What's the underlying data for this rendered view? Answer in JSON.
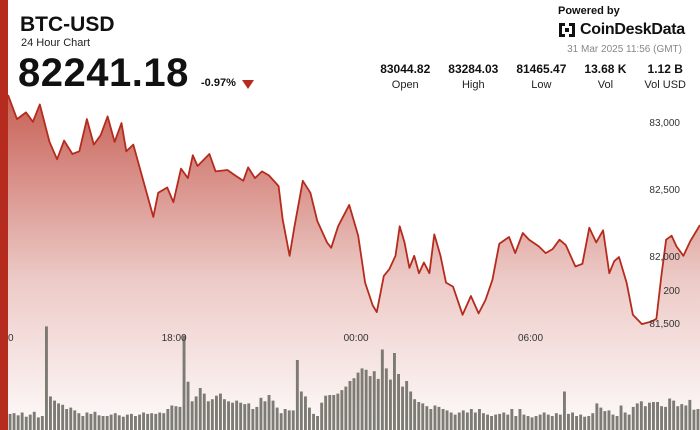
{
  "header": {
    "ticker": "BTC-USD",
    "subtitle": "24 Hour Chart",
    "price": "82241.18",
    "change": "-0.97%"
  },
  "branding": {
    "powered_by": "Powered by",
    "name": "CoinDeskData",
    "logo_icon": "coindesk-logo-icon"
  },
  "timestamp": "31 Mar 2025 11:56 (GMT)",
  "stats": [
    {
      "value": "83044.82",
      "label": "Open"
    },
    {
      "value": "83284.03",
      "label": "High"
    },
    {
      "value": "81465.47",
      "label": "Low"
    },
    {
      "value": "13.68 K",
      "label": "Vol"
    },
    {
      "value": "1.12 B",
      "label": "Vol USD"
    }
  ],
  "colors": {
    "accent": "#b52b1d",
    "line": "#b52b1d",
    "bars": "#6b6b62"
  },
  "chart_data": {
    "type": "line",
    "title": "",
    "xlabel": "",
    "ylabel": "",
    "ylim": [
      80700,
      83200
    ],
    "yticks": [
      {
        "value": 81500,
        "label": "81,500"
      },
      {
        "value": 82000,
        "label": "82,000"
      },
      {
        "value": 82500,
        "label": "82,500"
      },
      {
        "value": 83000,
        "label": "83,000"
      }
    ],
    "xticks": [
      {
        "x": 0,
        "label": "0"
      },
      {
        "x": 0.24,
        "label": "18:00"
      },
      {
        "x": 0.503,
        "label": "00:00"
      },
      {
        "x": 0.755,
        "label": "06:00"
      }
    ],
    "price_series": [
      [
        0.0,
        83200
      ],
      [
        0.013,
        83020
      ],
      [
        0.026,
        83070
      ],
      [
        0.036,
        83000
      ],
      [
        0.046,
        83130
      ],
      [
        0.06,
        82850
      ],
      [
        0.071,
        82720
      ],
      [
        0.081,
        82860
      ],
      [
        0.093,
        82760
      ],
      [
        0.103,
        82780
      ],
      [
        0.114,
        83020
      ],
      [
        0.124,
        82830
      ],
      [
        0.134,
        82900
      ],
      [
        0.144,
        83040
      ],
      [
        0.154,
        82850
      ],
      [
        0.164,
        82990
      ],
      [
        0.171,
        82780
      ],
      [
        0.181,
        82830
      ],
      [
        0.194,
        82590
      ],
      [
        0.21,
        82290
      ],
      [
        0.217,
        82470
      ],
      [
        0.23,
        82510
      ],
      [
        0.239,
        82400
      ],
      [
        0.25,
        82650
      ],
      [
        0.26,
        82580
      ],
      [
        0.267,
        82750
      ],
      [
        0.274,
        82670
      ],
      [
        0.291,
        82760
      ],
      [
        0.3,
        82630
      ],
      [
        0.317,
        82640
      ],
      [
        0.331,
        82590
      ],
      [
        0.34,
        82560
      ],
      [
        0.347,
        82660
      ],
      [
        0.357,
        82580
      ],
      [
        0.367,
        82630
      ],
      [
        0.377,
        82600
      ],
      [
        0.391,
        82520
      ],
      [
        0.397,
        82270
      ],
      [
        0.407,
        82000
      ],
      [
        0.414,
        82220
      ],
      [
        0.426,
        82560
      ],
      [
        0.437,
        82470
      ],
      [
        0.447,
        82260
      ],
      [
        0.461,
        82100
      ],
      [
        0.467,
        82060
      ],
      [
        0.477,
        82220
      ],
      [
        0.493,
        82380
      ],
      [
        0.506,
        82150
      ],
      [
        0.516,
        81800
      ],
      [
        0.527,
        81630
      ],
      [
        0.533,
        81580
      ],
      [
        0.543,
        81850
      ],
      [
        0.551,
        81900
      ],
      [
        0.56,
        82000
      ],
      [
        0.566,
        82220
      ],
      [
        0.573,
        82100
      ],
      [
        0.58,
        81910
      ],
      [
        0.587,
        82000
      ],
      [
        0.594,
        81870
      ],
      [
        0.601,
        81950
      ],
      [
        0.609,
        81870
      ],
      [
        0.616,
        82160
      ],
      [
        0.625,
        82000
      ],
      [
        0.633,
        81800
      ],
      [
        0.643,
        81770
      ],
      [
        0.657,
        81560
      ],
      [
        0.669,
        81700
      ],
      [
        0.68,
        81570
      ],
      [
        0.69,
        81670
      ],
      [
        0.7,
        81820
      ],
      [
        0.71,
        82090
      ],
      [
        0.724,
        82140
      ],
      [
        0.733,
        82020
      ],
      [
        0.744,
        82170
      ],
      [
        0.753,
        82120
      ],
      [
        0.767,
        82070
      ],
      [
        0.777,
        82020
      ],
      [
        0.787,
        82050
      ],
      [
        0.797,
        82120
      ],
      [
        0.806,
        82080
      ],
      [
        0.82,
        81920
      ],
      [
        0.83,
        81940
      ],
      [
        0.84,
        82210
      ],
      [
        0.85,
        82100
      ],
      [
        0.86,
        82190
      ],
      [
        0.869,
        81870
      ],
      [
        0.876,
        81960
      ],
      [
        0.883,
        81990
      ],
      [
        0.894,
        81800
      ],
      [
        0.903,
        81560
      ],
      [
        0.916,
        81490
      ],
      [
        0.93,
        81510
      ],
      [
        0.937,
        81530
      ],
      [
        0.944,
        81840
      ],
      [
        0.951,
        82120
      ],
      [
        0.959,
        82150
      ],
      [
        0.966,
        82070
      ],
      [
        0.976,
        82000
      ],
      [
        0.986,
        82110
      ],
      [
        1.0,
        82230
      ]
    ],
    "volume_ylim": [
      0,
      300
    ],
    "volume_ticks": [
      {
        "value": 200,
        "label": "200"
      }
    ],
    "volume": [
      23,
      24,
      21,
      25,
      19,
      22,
      26,
      18,
      20,
      148,
      48,
      42,
      38,
      36,
      30,
      32,
      28,
      24,
      20,
      25,
      23,
      26,
      21,
      20,
      20,
      22,
      24,
      21,
      19,
      22,
      23,
      20,
      22,
      25,
      23,
      24,
      23,
      25,
      24,
      30,
      35,
      34,
      33,
      135,
      69,
      41,
      48,
      60,
      52,
      41,
      44,
      49,
      52,
      44,
      41,
      39,
      42,
      39,
      37,
      38,
      30,
      33,
      46,
      41,
      50,
      42,
      32,
      24,
      30,
      28,
      28,
      100,
      55,
      48,
      32,
      23,
      20,
      39,
      49,
      50,
      50,
      52,
      57,
      62,
      70,
      74,
      82,
      88,
      86,
      77,
      84,
      73,
      115,
      88,
      72,
      110,
      80,
      62,
      70,
      55,
      44,
      40,
      38,
      34,
      30,
      35,
      33,
      30,
      28,
      25,
      22,
      25,
      28,
      25,
      30,
      25,
      30,
      24,
      22,
      20,
      22,
      23,
      25,
      22,
      30,
      20,
      30,
      22,
      20,
      18,
      20,
      22,
      25,
      22,
      20,
      24,
      22,
      55,
      23,
      25,
      20,
      22,
      19,
      20,
      24,
      38,
      32,
      27,
      28,
      22,
      20,
      35,
      25,
      22,
      33,
      38,
      41,
      34,
      39,
      40,
      40,
      34,
      33,
      45,
      42,
      34,
      37,
      35,
      43,
      29,
      30
    ]
  }
}
